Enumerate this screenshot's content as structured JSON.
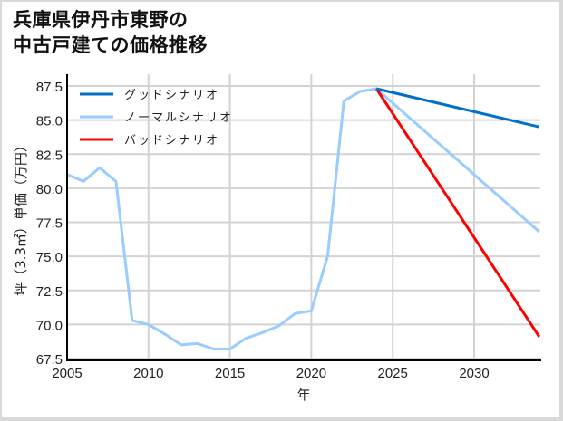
{
  "title_line1": "兵庫県伊丹市東野の",
  "title_line2": "中古戸建ての価格推移",
  "chart_data": {
    "type": "line",
    "title": "兵庫県伊丹市東野の中古戸建ての価格推移",
    "xlabel": "年",
    "ylabel": "坪（3.3㎡）単価（万円）",
    "xlim": [
      2005,
      2034
    ],
    "ylim": [
      67.5,
      87.5
    ],
    "x_ticks": [
      2005,
      2010,
      2015,
      2020,
      2025,
      2030
    ],
    "y_ticks": [
      67.5,
      70.0,
      72.5,
      75.0,
      77.5,
      80.0,
      82.5,
      85.0,
      87.5
    ],
    "grid": true,
    "legend_position": "upper left",
    "series": [
      {
        "name": "グッドシナリオ",
        "color": "#0070c8",
        "x": [
          2024,
          2034
        ],
        "values": [
          87.3,
          84.5
        ]
      },
      {
        "name": "ノーマルシナリオ",
        "color": "#99ccff",
        "x": [
          2005,
          2006,
          2007,
          2008,
          2009,
          2010,
          2011,
          2012,
          2013,
          2014,
          2015,
          2016,
          2017,
          2018,
          2019,
          2020,
          2021,
          2022,
          2023,
          2024,
          2034
        ],
        "values": [
          81.0,
          80.5,
          81.5,
          80.5,
          70.3,
          70.0,
          69.3,
          68.5,
          68.6,
          68.2,
          68.2,
          69.0,
          69.4,
          69.9,
          70.8,
          71.0,
          75.0,
          86.4,
          87.1,
          87.3,
          76.8
        ]
      },
      {
        "name": "バッドシナリオ",
        "color": "#ff0000",
        "x": [
          2024,
          2034
        ],
        "values": [
          87.3,
          69.1
        ]
      }
    ]
  },
  "y_tick_labels": [
    "87.5",
    "85.0",
    "82.5",
    "80.0",
    "77.5",
    "75.0",
    "72.5",
    "70.0",
    "67.5"
  ],
  "x_tick_labels": [
    "2005",
    "2010",
    "2015",
    "2020",
    "2025",
    "2030"
  ],
  "legend": [
    "グッドシナリオ",
    "ノーマルシナリオ",
    "バッドシナリオ"
  ]
}
